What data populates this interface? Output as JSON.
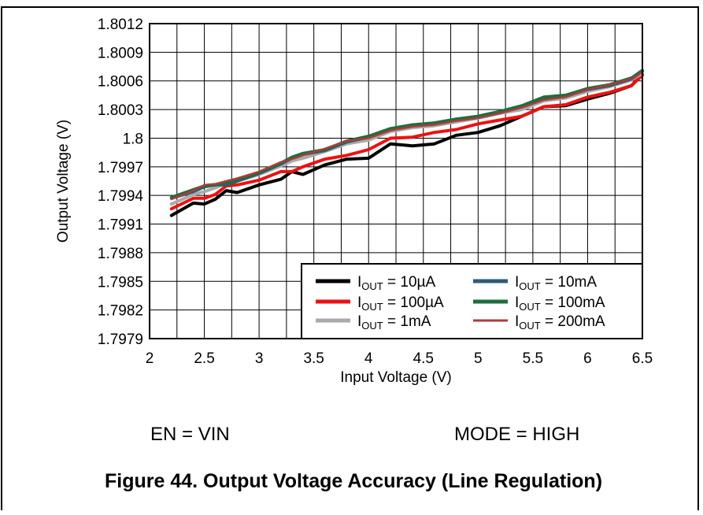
{
  "figure_title": "Figure 44. Output Voltage Accuracy (Line Regulation)",
  "conditions": {
    "en": "EN = VIN",
    "mode": "MODE = HIGH"
  },
  "chart_data": {
    "type": "line",
    "xlabel": "Input Voltage (V)",
    "ylabel": "Output Voltage (V)",
    "xlim": [
      2,
      6.5
    ],
    "ylim": [
      1.7979,
      1.8012
    ],
    "x_ticks": [
      "2",
      "2.5",
      "3",
      "3.5",
      "4",
      "4.5",
      "5",
      "5.5",
      "6",
      "6.5"
    ],
    "y_ticks": [
      "1.8012",
      "1.8009",
      "1.8006",
      "1.8003",
      "1.8",
      "1.7997",
      "1.7994",
      "1.7991",
      "1.7988",
      "1.7985",
      "1.7982",
      "1.7979"
    ],
    "grid": true,
    "grid_minor_x": 0.25,
    "legend_position": "bottom-right",
    "x": [
      2.2,
      2.4,
      2.5,
      2.6,
      2.7,
      2.8,
      3.0,
      3.2,
      3.3,
      3.4,
      3.6,
      3.8,
      4.0,
      4.2,
      4.4,
      4.6,
      4.8,
      5.0,
      5.2,
      5.4,
      5.6,
      5.8,
      6.0,
      6.2,
      6.4,
      6.5
    ],
    "series": [
      {
        "name_main": "I",
        "name_sub": "OUT",
        "name_rest": " = 10µA",
        "color": "#000000",
        "width": 4,
        "values": [
          1.79919,
          1.79932,
          1.79931,
          1.79936,
          1.79945,
          1.79943,
          1.79951,
          1.79957,
          1.79965,
          1.79962,
          1.79972,
          1.79978,
          1.79979,
          1.79994,
          1.79992,
          1.79994,
          1.80003,
          1.80006,
          1.80013,
          1.80023,
          1.80033,
          1.80034,
          1.80041,
          1.80047,
          1.80055,
          1.80067
        ]
      },
      {
        "name_main": "I",
        "name_sub": "OUT",
        "name_rest": " = 100µA",
        "color": "#ee1111",
        "width": 4,
        "values": [
          1.79926,
          1.79937,
          1.79937,
          1.79941,
          1.7995,
          1.79951,
          1.79956,
          1.79965,
          1.79965,
          1.7997,
          1.79978,
          1.79982,
          1.79988,
          1.8,
          1.80001,
          1.80006,
          1.80009,
          1.80015,
          1.80019,
          1.80023,
          1.80033,
          1.80035,
          1.80043,
          1.80048,
          1.80055,
          1.80066
        ]
      },
      {
        "name_main": "I",
        "name_sub": "OUT",
        "name_rest": " = 1mA",
        "color": "#aaaaaa",
        "width": 4,
        "values": [
          1.79931,
          1.79941,
          1.79944,
          1.79948,
          1.79953,
          1.79955,
          1.79962,
          1.79971,
          1.79976,
          1.79979,
          1.79986,
          1.79994,
          1.79998,
          1.80007,
          1.80011,
          1.80013,
          1.80017,
          1.80021,
          1.80026,
          1.8003,
          1.80039,
          1.80042,
          1.80049,
          1.80054,
          1.80061,
          1.80068
        ]
      },
      {
        "name_main": "I",
        "name_sub": "OUT",
        "name_rest": " = 10mA",
        "color": "#2e5a78",
        "width": 4,
        "values": [
          1.79937,
          1.79944,
          1.79949,
          1.79951,
          1.79951,
          1.79955,
          1.79963,
          1.79973,
          1.79979,
          1.79983,
          1.79987,
          1.79996,
          1.80001,
          1.80009,
          1.80013,
          1.80015,
          1.80019,
          1.80022,
          1.80027,
          1.80033,
          1.80042,
          1.80044,
          1.80051,
          1.80055,
          1.80062,
          1.8007
        ]
      },
      {
        "name_main": "I",
        "name_sub": "OUT",
        "name_rest": " = 100mA",
        "color": "#1e6e3c",
        "width": 4,
        "values": [
          1.79938,
          1.79946,
          1.7995,
          1.79951,
          1.79953,
          1.79956,
          1.79964,
          1.79974,
          1.7998,
          1.79984,
          1.79988,
          1.79997,
          1.80002,
          1.8001,
          1.80014,
          1.80016,
          1.8002,
          1.80023,
          1.80028,
          1.80034,
          1.80043,
          1.80045,
          1.80052,
          1.80056,
          1.80063,
          1.80071
        ]
      },
      {
        "name_main": "I",
        "name_sub": "OUT",
        "name_rest": " = 200mA",
        "color": "#b03a3a",
        "width": 2.5,
        "values": [
          1.79936,
          1.79945,
          1.79951,
          1.79952,
          1.79955,
          1.79958,
          1.79965,
          1.79975,
          1.79978,
          1.79982,
          1.79989,
          1.79997,
          1.8,
          1.80008,
          1.80012,
          1.80014,
          1.80018,
          1.80021,
          1.80026,
          1.80032,
          1.8004,
          1.80043,
          1.80051,
          1.80056,
          1.80062,
          1.80069
        ]
      }
    ]
  }
}
